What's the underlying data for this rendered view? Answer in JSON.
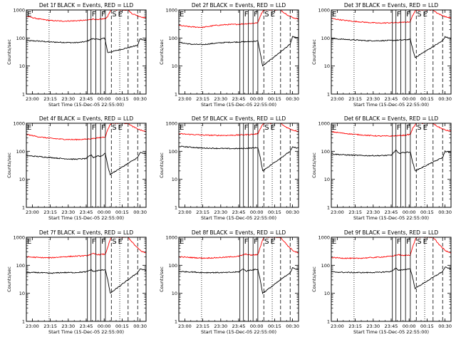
{
  "page": {
    "background": "#ffffff"
  },
  "styles": {
    "events_color": "#000000",
    "lld_color": "#ff0000",
    "axis_color": "#000000"
  },
  "chart_common": {
    "type": "line",
    "xlabel": "Start Time (15-Dec-05 22:55:00)",
    "ylabel": "Counts/sec",
    "x_tick_labels": [
      "23:00",
      "23:15",
      "23:30",
      "23:45",
      "00:00",
      "00:15",
      "00:30"
    ],
    "x_tick_minutes": [
      5,
      20,
      35,
      50,
      65,
      80,
      95
    ],
    "xlim_minutes": [
      0,
      100
    ],
    "yscale": "log",
    "ylim": [
      1,
      1000
    ],
    "y_tick_labels": [
      "1",
      "10",
      "100",
      "1000"
    ],
    "y_tick_values": [
      1,
      10,
      100,
      1000
    ],
    "flags": [
      {
        "label": "E",
        "minute": 0,
        "style": "none"
      },
      {
        "label": "F",
        "minute": 54,
        "style": "solid"
      },
      {
        "label": "F",
        "minute": 62,
        "style": "solid"
      },
      {
        "label": "S",
        "minute": 71,
        "style": "dashed"
      },
      {
        "label": "E",
        "minute": 76,
        "style": "solid"
      }
    ],
    "vlines": [
      {
        "minute": 19,
        "style": "dotted"
      },
      {
        "minute": 51,
        "style": "solid"
      },
      {
        "minute": 54,
        "style": "solid"
      },
      {
        "minute": 58,
        "style": "solid"
      },
      {
        "minute": 62,
        "style": "solid"
      },
      {
        "minute": 66,
        "style": "solid"
      },
      {
        "minute": 71,
        "style": "dashed"
      },
      {
        "minute": 78,
        "style": "dotted"
      },
      {
        "minute": 85,
        "style": "dashed"
      },
      {
        "minute": 93,
        "style": "dashed"
      }
    ]
  },
  "chart_data": [
    {
      "title": "Det 1f BLACK = Events, RED = LLD",
      "series": [
        {
          "role": "events",
          "x": [
            0,
            10,
            20,
            30,
            40,
            45,
            50,
            54,
            56,
            60,
            62,
            65,
            66,
            68,
            93,
            95,
            100
          ],
          "y": [
            80,
            78,
            72,
            70,
            68,
            70,
            75,
            90,
            95,
            88,
            90,
            100,
            80,
            30,
            55,
            95,
            80
          ]
        },
        {
          "role": "lld",
          "x": [
            0,
            10,
            20,
            30,
            40,
            50,
            56,
            60,
            62,
            66,
            68,
            70,
            71,
            72,
            85,
            88,
            92,
            96,
            100
          ],
          "y": [
            600,
            480,
            420,
            400,
            410,
            430,
            480,
            440,
            470,
            490,
            600,
            900,
            1000,
            1000,
            1000,
            750,
            650,
            560,
            520
          ]
        }
      ]
    },
    {
      "title": "Det 2f BLACK = Events, RED = LLD",
      "series": [
        {
          "role": "events",
          "x": [
            0,
            10,
            20,
            30,
            40,
            50,
            60,
            66,
            68,
            70,
            93,
            95,
            100
          ],
          "y": [
            70,
            60,
            58,
            65,
            70,
            72,
            75,
            78,
            30,
            10,
            60,
            110,
            100
          ]
        },
        {
          "role": "lld",
          "x": [
            0,
            10,
            20,
            30,
            40,
            50,
            60,
            66,
            68,
            70,
            71,
            72,
            85,
            88,
            92,
            96,
            100
          ],
          "y": [
            280,
            250,
            240,
            280,
            300,
            310,
            330,
            350,
            600,
            900,
            1000,
            1000,
            1000,
            800,
            620,
            520,
            480
          ]
        }
      ]
    },
    {
      "title": "Det 3f BLACK = Events, RED = LLD",
      "series": [
        {
          "role": "events",
          "x": [
            0,
            10,
            20,
            30,
            40,
            50,
            60,
            66,
            68,
            70,
            93,
            95,
            100
          ],
          "y": [
            95,
            90,
            85,
            80,
            80,
            82,
            85,
            90,
            40,
            20,
            80,
            110,
            95
          ]
        },
        {
          "role": "lld",
          "x": [
            0,
            10,
            20,
            30,
            40,
            50,
            60,
            66,
            68,
            70,
            71,
            72,
            85,
            88,
            92,
            96,
            100
          ],
          "y": [
            500,
            430,
            390,
            360,
            340,
            350,
            360,
            380,
            650,
            900,
            1000,
            1000,
            1000,
            800,
            650,
            560,
            520
          ]
        }
      ]
    },
    {
      "title": "Det 4f BLACK = Events, RED = LLD",
      "series": [
        {
          "role": "events",
          "x": [
            0,
            10,
            20,
            30,
            40,
            50,
            54,
            56,
            60,
            62,
            66,
            68,
            70,
            93,
            95,
            100
          ],
          "y": [
            70,
            65,
            60,
            55,
            52,
            55,
            75,
            60,
            70,
            65,
            85,
            30,
            15,
            60,
            90,
            80
          ]
        },
        {
          "role": "lld",
          "x": [
            0,
            10,
            20,
            30,
            40,
            50,
            60,
            66,
            68,
            70,
            71,
            72,
            85,
            88,
            92,
            96,
            100
          ],
          "y": [
            400,
            330,
            290,
            270,
            260,
            270,
            300,
            330,
            600,
            900,
            1000,
            1000,
            1000,
            800,
            650,
            560,
            500
          ]
        }
      ]
    },
    {
      "title": "Det 5f BLACK = Events, RED = LLD",
      "series": [
        {
          "role": "events",
          "x": [
            0,
            10,
            20,
            30,
            40,
            50,
            60,
            66,
            68,
            70,
            93,
            95,
            100
          ],
          "y": [
            150,
            140,
            130,
            128,
            125,
            125,
            130,
            135,
            60,
            20,
            100,
            140,
            130
          ]
        },
        {
          "role": "lld",
          "x": [
            0,
            10,
            20,
            30,
            40,
            50,
            60,
            66,
            68,
            70,
            71,
            72,
            85,
            88,
            92,
            96,
            100
          ],
          "y": [
            420,
            400,
            380,
            370,
            370,
            380,
            400,
            420,
            650,
            900,
            1000,
            1000,
            1000,
            800,
            650,
            560,
            520
          ]
        }
      ]
    },
    {
      "title": "Det 6f BLACK = Events, RED = LLD",
      "series": [
        {
          "role": "events",
          "x": [
            0,
            10,
            20,
            30,
            40,
            50,
            54,
            56,
            60,
            66,
            68,
            70,
            93,
            95,
            100
          ],
          "y": [
            80,
            75,
            72,
            70,
            70,
            72,
            110,
            85,
            90,
            95,
            40,
            20,
            60,
            100,
            90
          ]
        },
        {
          "role": "lld",
          "x": [
            0,
            10,
            20,
            30,
            40,
            50,
            60,
            66,
            68,
            70,
            71,
            72,
            85,
            88,
            92,
            96,
            100
          ],
          "y": [
            500,
            440,
            400,
            370,
            350,
            350,
            370,
            400,
            650,
            900,
            1000,
            1000,
            1000,
            800,
            650,
            560,
            520
          ]
        }
      ]
    },
    {
      "title": "Det 7f BLACK = Events, RED = LLD",
      "series": [
        {
          "role": "events",
          "x": [
            0,
            10,
            20,
            30,
            40,
            50,
            54,
            56,
            60,
            66,
            68,
            70,
            93,
            95,
            100
          ],
          "y": [
            55,
            55,
            52,
            55,
            55,
            58,
            70,
            60,
            65,
            70,
            30,
            10,
            55,
            75,
            65
          ]
        },
        {
          "role": "lld",
          "x": [
            0,
            10,
            20,
            30,
            40,
            50,
            56,
            60,
            66,
            68,
            70,
            71,
            72,
            85,
            88,
            92,
            96,
            100
          ],
          "y": [
            200,
            190,
            185,
            200,
            210,
            220,
            260,
            240,
            250,
            450,
            800,
            1000,
            1000,
            1000,
            700,
            450,
            320,
            270
          ]
        }
      ]
    },
    {
      "title": "Det 8f BLACK = Events, RED = LLD",
      "series": [
        {
          "role": "events",
          "x": [
            0,
            10,
            20,
            30,
            40,
            50,
            54,
            56,
            60,
            66,
            68,
            70,
            93,
            95,
            100
          ],
          "y": [
            60,
            58,
            55,
            55,
            55,
            58,
            75,
            62,
            68,
            72,
            30,
            10,
            55,
            80,
            70
          ]
        },
        {
          "role": "lld",
          "x": [
            0,
            10,
            20,
            30,
            40,
            50,
            56,
            60,
            66,
            68,
            70,
            71,
            72,
            85,
            88,
            92,
            96,
            100
          ],
          "y": [
            200,
            190,
            180,
            185,
            195,
            210,
            250,
            230,
            240,
            450,
            800,
            1000,
            1000,
            1000,
            700,
            450,
            320,
            270
          ]
        }
      ]
    },
    {
      "title": "Det 9f BLACK = Events, RED = LLD",
      "series": [
        {
          "role": "events",
          "x": [
            0,
            10,
            20,
            30,
            40,
            50,
            54,
            56,
            60,
            66,
            68,
            70,
            93,
            95,
            100
          ],
          "y": [
            58,
            56,
            55,
            55,
            56,
            60,
            80,
            65,
            70,
            75,
            35,
            15,
            60,
            85,
            75
          ]
        },
        {
          "role": "lld",
          "x": [
            0,
            10,
            20,
            30,
            40,
            50,
            56,
            60,
            66,
            68,
            70,
            71,
            72,
            85,
            88,
            92,
            96,
            100
          ],
          "y": [
            190,
            180,
            175,
            185,
            195,
            210,
            240,
            220,
            235,
            450,
            800,
            1000,
            1000,
            1000,
            700,
            450,
            320,
            270
          ]
        }
      ]
    }
  ]
}
